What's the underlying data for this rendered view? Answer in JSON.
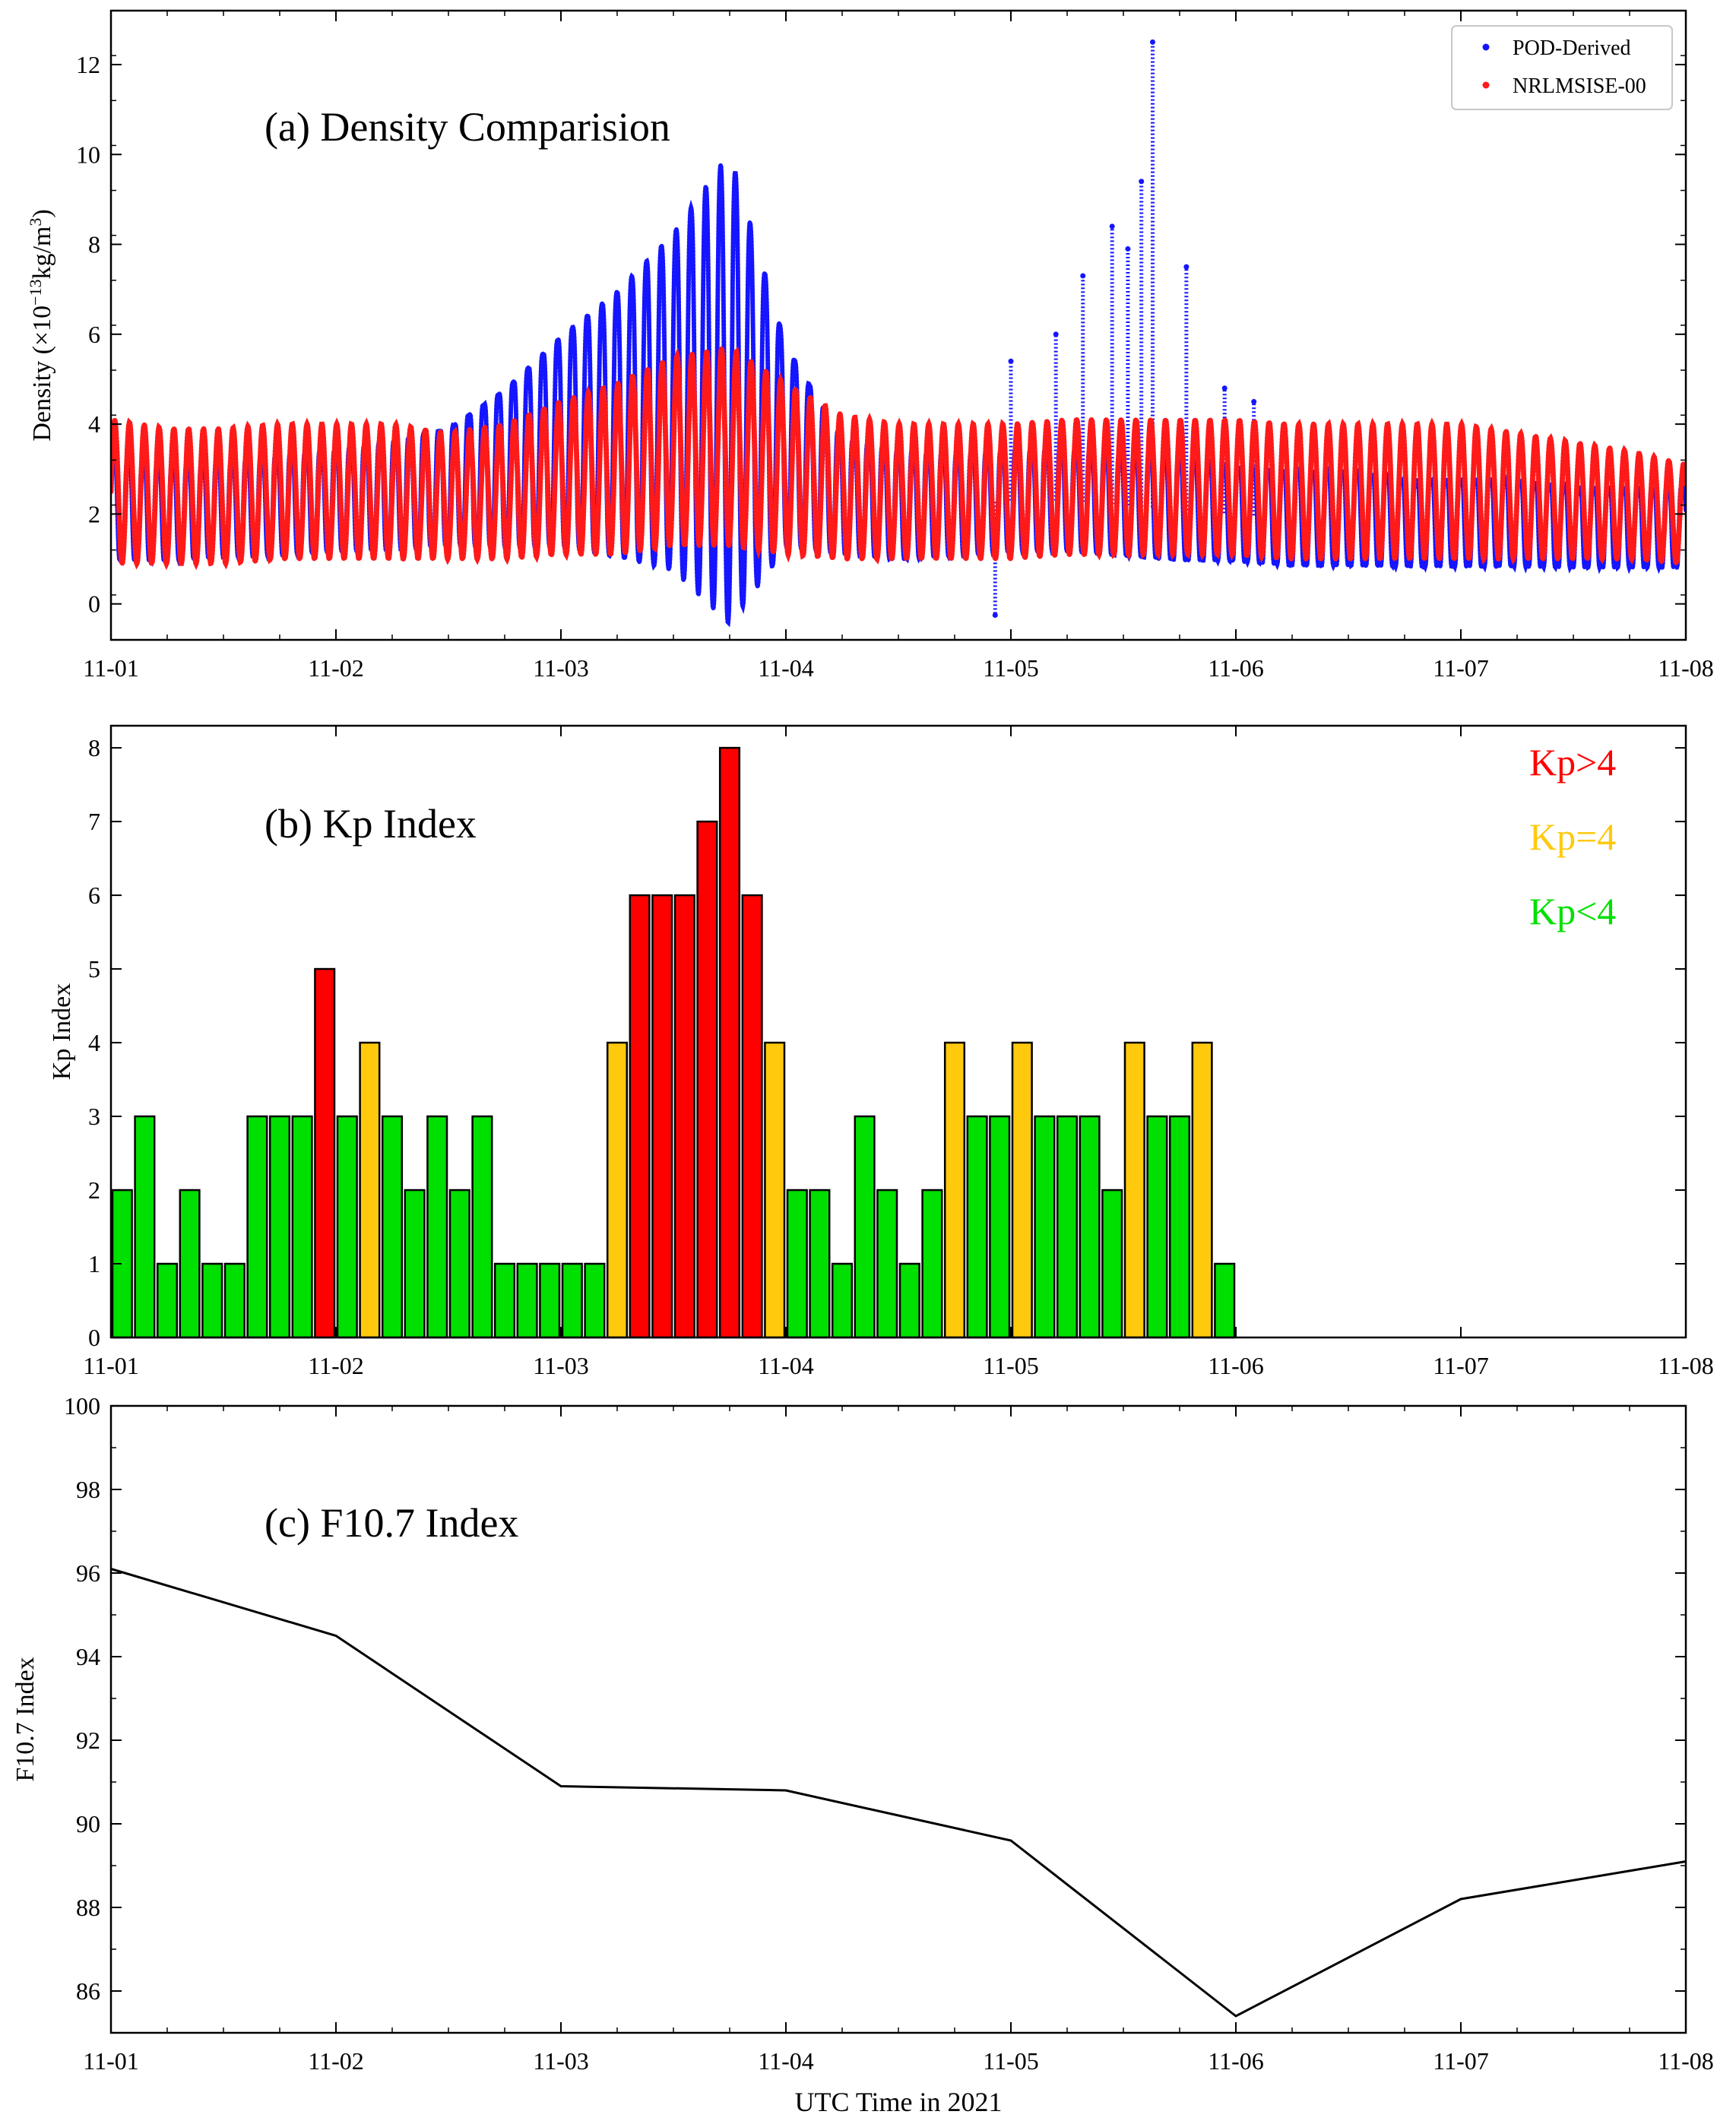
{
  "chart_data": [
    {
      "type": "scatter",
      "panel": "a",
      "title": "(a) Density Comparision",
      "ylabel_prefix": "Density (×10",
      "ylabel_exponent": "−13",
      "ylabel_units": "kg/m",
      "ylabel_units_exponent": "3",
      "ylabel_close": ")",
      "xlabel": "",
      "xlim": [
        0,
        7
      ],
      "ylim": [
        -0.8,
        13.2
      ],
      "x_tick_labels": [
        "11-01",
        "11-02",
        "11-03",
        "11-04",
        "11-05",
        "11-06",
        "11-07",
        "11-08"
      ],
      "y_ticks": [
        0,
        2,
        4,
        6,
        8,
        10,
        12
      ],
      "legend_position": "top-right",
      "series": [
        {
          "name": "POD-Derived",
          "color": "#1515ff",
          "orbits_per_day": 15.2,
          "mean": [
            2.1,
            2.0,
            2.1,
            2.2,
            2.3,
            2.4,
            2.6,
            3.0,
            3.6,
            4.0,
            4.5,
            4.8,
            3.5,
            2.4,
            2.2,
            2.2,
            2.3,
            2.3,
            2.2,
            2.1,
            2.0,
            1.9,
            1.9,
            1.8,
            1.8,
            1.8,
            1.7,
            1.7,
            1.7
          ],
          "half_amplitude": [
            1.3,
            1.2,
            1.2,
            1.3,
            1.3,
            1.4,
            1.5,
            2.0,
            2.6,
            3.2,
            4.0,
            5.5,
            2.5,
            1.5,
            1.4,
            1.3,
            1.3,
            1.3,
            1.3,
            1.3,
            1.2,
            1.2,
            1.2,
            1.1,
            1.1,
            1.1,
            1.0,
            1.0,
            1.0
          ],
          "spikes": [
            {
              "x": 3.93,
              "y": -0.25
            },
            {
              "x": 4.0,
              "y": 5.4
            },
            {
              "x": 4.2,
              "y": 6.0
            },
            {
              "x": 4.32,
              "y": 7.3
            },
            {
              "x": 4.45,
              "y": 8.4
            },
            {
              "x": 4.52,
              "y": 7.9
            },
            {
              "x": 4.58,
              "y": 9.4
            },
            {
              "x": 4.63,
              "y": 12.5
            },
            {
              "x": 4.78,
              "y": 7.5
            },
            {
              "x": 4.95,
              "y": 4.8
            },
            {
              "x": 5.08,
              "y": 4.5
            }
          ]
        },
        {
          "name": "NRLMSISE-00",
          "color": "#ff1a1a",
          "orbits_per_day": 15.2,
          "mean": [
            2.5,
            2.4,
            2.4,
            2.5,
            2.5,
            2.5,
            2.4,
            2.5,
            2.8,
            3.0,
            3.4,
            3.5,
            3.0,
            2.6,
            2.5,
            2.5,
            2.5,
            2.6,
            2.6,
            2.6,
            2.6,
            2.5,
            2.5,
            2.5,
            2.5,
            2.4,
            2.3,
            2.2,
            2.0
          ],
          "half_amplitude": [
            1.6,
            1.5,
            1.5,
            1.5,
            1.5,
            1.5,
            1.4,
            1.5,
            1.7,
            1.9,
            2.1,
            2.2,
            1.9,
            1.6,
            1.5,
            1.5,
            1.5,
            1.5,
            1.5,
            1.5,
            1.5,
            1.5,
            1.5,
            1.5,
            1.5,
            1.4,
            1.3,
            1.2,
            1.1
          ]
        }
      ]
    },
    {
      "type": "bar",
      "panel": "b",
      "title": "(b) Kp Index",
      "xlabel": "",
      "ylabel": "Kp Index",
      "xlim": [
        0,
        7
      ],
      "ylim": [
        0,
        8.3
      ],
      "bar_width_days": 0.1,
      "x_tick_labels": [
        "11-01",
        "11-02",
        "11-03",
        "11-04",
        "11-05",
        "11-06",
        "11-07",
        "11-08"
      ],
      "y_ticks": [
        0,
        1,
        2,
        3,
        4,
        5,
        6,
        7,
        8
      ],
      "interval_hours": 3,
      "values": [
        2,
        3,
        1,
        2,
        1,
        1,
        3,
        3,
        3,
        5,
        3,
        4,
        3,
        2,
        3,
        2,
        3,
        1,
        1,
        1,
        1,
        1,
        4,
        6,
        6,
        6,
        7,
        8,
        6,
        4,
        2,
        2,
        1,
        3,
        2,
        1,
        2,
        4,
        3,
        3,
        4,
        3,
        3,
        3,
        2,
        4,
        3,
        3,
        4,
        1
      ],
      "legend": [
        {
          "label": "Kp>4",
          "color": "#ff0000"
        },
        {
          "label": "Kp=4",
          "color": "#ffc90e"
        },
        {
          "label": "Kp<4",
          "color": "#00e000"
        }
      ]
    },
    {
      "type": "line",
      "panel": "c",
      "title": "(c) F10.7 Index",
      "xlabel": "UTC Time in 2021",
      "ylabel": "F10.7 Index",
      "xlim": [
        0,
        7
      ],
      "ylim": [
        85,
        100
      ],
      "x_tick_labels": [
        "11-01",
        "11-02",
        "11-03",
        "11-04",
        "11-05",
        "11-06",
        "11-07",
        "11-08"
      ],
      "y_ticks": [
        86,
        88,
        90,
        92,
        94,
        96,
        98,
        100
      ],
      "series": [
        {
          "name": "F10.7",
          "color": "#000000",
          "x": [
            0,
            1,
            2,
            3,
            4,
            5,
            6,
            7
          ],
          "values": [
            96.1,
            94.5,
            90.9,
            90.8,
            89.6,
            85.4,
            88.2,
            89.1
          ]
        }
      ]
    }
  ]
}
